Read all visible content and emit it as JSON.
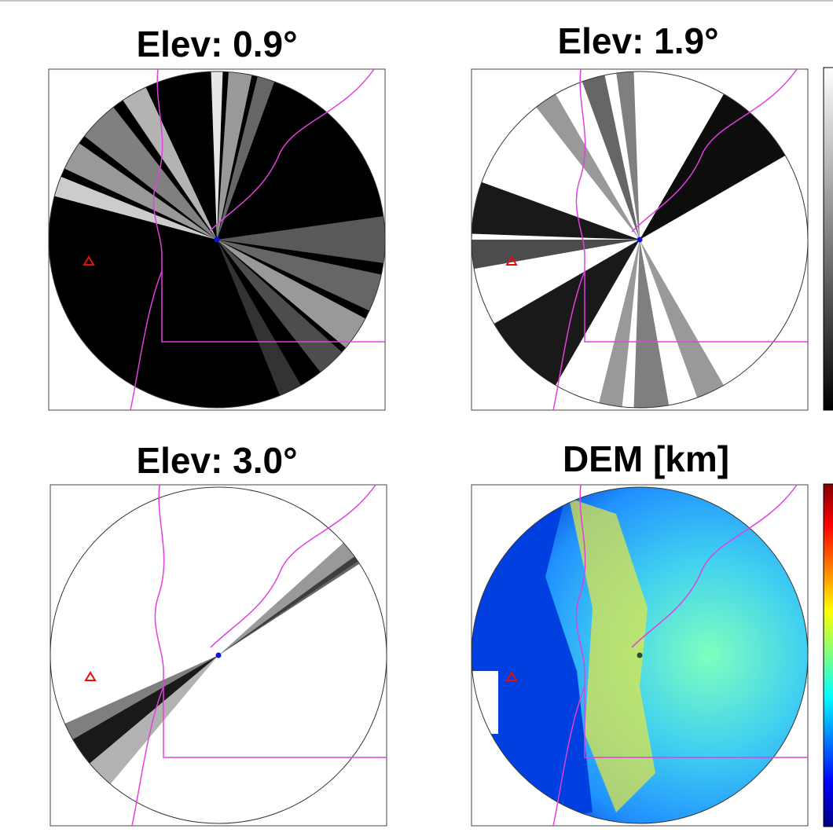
{
  "panels": [
    {
      "title": "Elev: 0.9°"
    },
    {
      "title": "Elev: 1.9°"
    },
    {
      "title": "Elev: 3.0°"
    },
    {
      "title": "DEM [km]"
    }
  ]
}
